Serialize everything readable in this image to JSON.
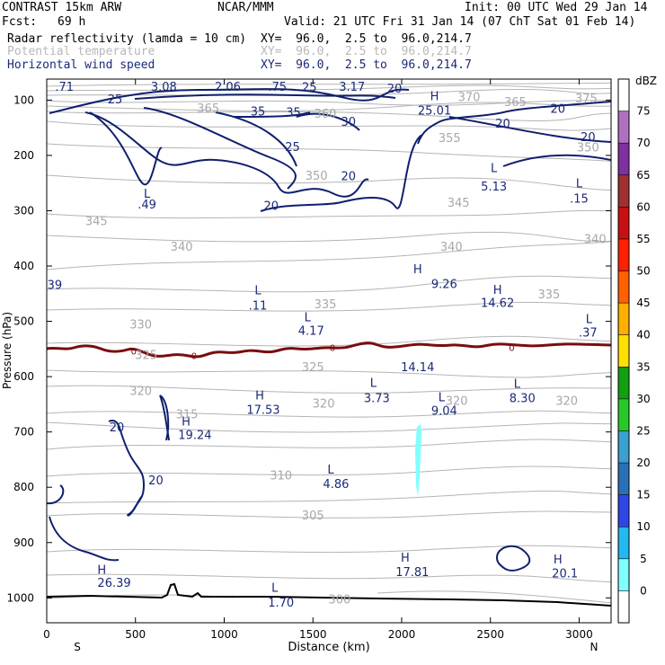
{
  "header": {
    "model": "CONTRAST 15km ARW",
    "org": "NCAR/MMM",
    "init": "Init: 00 UTC Wed 29 Jan 14",
    "fcst_label": "Fcst:",
    "fcst_value": "69 h",
    "valid": "Valid: 21 UTC Fri 31 Jan 14 (07 ChT Sat 01 Feb 14)",
    "fields": [
      {
        "name": "Radar reflectivity (lamda = 10 cm)",
        "xy": "XY=  96.0,  2.5 to  96.0,214.7",
        "style": "black"
      },
      {
        "name": "Potential temperature",
        "xy": "XY=  96.0,  2.5 to  96.0,214.7",
        "style": "gray"
      },
      {
        "name": "Horizontal wind speed",
        "xy": "XY=  96.0,  2.5 to  96.0,214.7",
        "style": "navy"
      }
    ]
  },
  "chart_data": {
    "type": "contour",
    "xlabel": "Distance (km)",
    "ylabel": "Pressure (hPa)",
    "xlim": [
      0,
      3180
    ],
    "ylim": [
      1045,
      62
    ],
    "x_ticks": [
      0,
      500,
      1000,
      1500,
      2000,
      2500,
      3000
    ],
    "y_ticks": [
      100,
      200,
      300,
      400,
      500,
      600,
      700,
      800,
      900,
      1000
    ],
    "x_ends": {
      "left": "S",
      "right": "N"
    },
    "colorbar": {
      "unit": "dBZ",
      "levels": [
        0,
        5,
        10,
        15,
        20,
        25,
        30,
        35,
        40,
        45,
        50,
        55,
        60,
        65,
        70,
        75
      ],
      "colors": [
        "#ffffff",
        "#80ffff",
        "#22b8f0",
        "#2e46e8",
        "#2a70b8",
        "#3aa0d0",
        "#28c828",
        "#10a010",
        "#ffe000",
        "#ffb000",
        "#ff6000",
        "#ff2000",
        "#c81010",
        "#a03030",
        "#8030a0",
        "#b070c0",
        "#ffffff"
      ]
    },
    "wind_labels": [
      {
        "text": "H",
        "x": 2185,
        "p": 92
      },
      {
        "text": "25.01",
        "x": 2185,
        "p": 118
      },
      {
        "text": "L",
        "x": 2520,
        "p": 222
      },
      {
        "text": "5.13",
        "x": 2520,
        "p": 255
      },
      {
        "text": "L",
        "x": 3000,
        "p": 250
      },
      {
        "text": "L",
        "x": 565,
        "p": 268
      },
      {
        "text": "H",
        "x": 2090,
        "p": 405
      },
      {
        "text": "L",
        "x": 1190,
        "p": 443
      },
      {
        "text": "H",
        "x": 2540,
        "p": 442
      },
      {
        "text": "L",
        "x": 1470,
        "p": 492
      },
      {
        "text": "L",
        "x": 3055,
        "p": 495
      },
      {
        "text": "L",
        "x": 1840,
        "p": 610
      },
      {
        "text": "L",
        "x": 2650,
        "p": 612
      },
      {
        "text": "H",
        "x": 1200,
        "p": 633
      },
      {
        "text": "L",
        "x": 2225,
        "p": 636
      },
      {
        "text": "H",
        "x": 785,
        "p": 680
      },
      {
        "text": "L",
        "x": 1600,
        "p": 767
      },
      {
        "text": "H",
        "x": 310,
        "p": 948
      },
      {
        "text": "H",
        "x": 2020,
        "p": 926
      },
      {
        "text": "H",
        "x": 2880,
        "p": 930
      },
      {
        "text": "L",
        "x": 1285,
        "p": 981
      },
      {
        "text": ".71",
        "x": 100,
        "p": 75
      },
      {
        "text": "3.08",
        "x": 660,
        "p": 75
      },
      {
        "text": "2.06",
        "x": 1020,
        "p": 75
      },
      {
        "text": ".75",
        "x": 1300,
        "p": 75
      },
      {
        "text": "25",
        "x": 1480,
        "p": 76
      },
      {
        "text": "3.17",
        "x": 1720,
        "p": 75
      },
      {
        "text": "20",
        "x": 1960,
        "p": 78
      },
      {
        "text": "25",
        "x": 385,
        "p": 98
      },
      {
        "text": "35",
        "x": 1190,
        "p": 120
      },
      {
        "text": "35",
        "x": 1390,
        "p": 121
      },
      {
        "text": "30",
        "x": 1700,
        "p": 138
      },
      {
        "text": "20",
        "x": 2880,
        "p": 115
      },
      {
        "text": "20",
        "x": 2570,
        "p": 142
      },
      {
        "text": "20",
        "x": 3050,
        "p": 166
      },
      {
        "text": "25",
        "x": 1385,
        "p": 184
      },
      {
        "text": "20",
        "x": 1700,
        "p": 237
      },
      {
        "text": "20",
        "x": 1265,
        "p": 290
      },
      {
        "text": ".15",
        "x": 3000,
        "p": 277
      },
      {
        "text": ".49",
        "x": 565,
        "p": 288
      },
      {
        "text": "39",
        "x": 45,
        "p": 433
      },
      {
        "text": "9.26",
        "x": 2240,
        "p": 432
      },
      {
        "text": ".11",
        "x": 1190,
        "p": 471
      },
      {
        "text": "14.62",
        "x": 2540,
        "p": 466
      },
      {
        "text": "4.17",
        "x": 1490,
        "p": 516
      },
      {
        "text": ".37",
        "x": 3050,
        "p": 519
      },
      {
        "text": "14.14",
        "x": 2090,
        "p": 582
      },
      {
        "text": "3.73",
        "x": 1860,
        "p": 638
      },
      {
        "text": "8.30",
        "x": 2680,
        "p": 638
      },
      {
        "text": "17.53",
        "x": 1220,
        "p": 659
      },
      {
        "text": "9.04",
        "x": 2240,
        "p": 661
      },
      {
        "text": "19.24",
        "x": 835,
        "p": 705
      },
      {
        "text": "20",
        "x": 395,
        "p": 691
      },
      {
        "text": "20",
        "x": 615,
        "p": 787
      },
      {
        "text": "4.86",
        "x": 1630,
        "p": 793
      },
      {
        "text": "26.39",
        "x": 380,
        "p": 972
      },
      {
        "text": "17.81",
        "x": 2060,
        "p": 952
      },
      {
        "text": "20.1",
        "x": 2920,
        "p": 955
      },
      {
        "text": "1.70",
        "x": 1320,
        "p": 1008
      }
    ],
    "theta_labels": [
      {
        "text": "370",
        "x": 2380,
        "p": 94
      },
      {
        "text": "375",
        "x": 3040,
        "p": 96
      },
      {
        "text": "365",
        "x": 2640,
        "p": 103
      },
      {
        "text": "360",
        "x": 1570,
        "p": 124
      },
      {
        "text": "365",
        "x": 910,
        "p": 114
      },
      {
        "text": "355",
        "x": 2270,
        "p": 168
      },
      {
        "text": "350",
        "x": 3050,
        "p": 185
      },
      {
        "text": "350",
        "x": 1520,
        "p": 236
      },
      {
        "text": "345",
        "x": 2320,
        "p": 285
      },
      {
        "text": "345",
        "x": 280,
        "p": 318
      },
      {
        "text": "340",
        "x": 760,
        "p": 364
      },
      {
        "text": "340",
        "x": 2280,
        "p": 364
      },
      {
        "text": "340",
        "x": 3090,
        "p": 350
      },
      {
        "text": "335",
        "x": 1570,
        "p": 468
      },
      {
        "text": "335",
        "x": 2830,
        "p": 450
      },
      {
        "text": "330",
        "x": 530,
        "p": 505
      },
      {
        "text": "325",
        "x": 560,
        "p": 560
      },
      {
        "text": "325",
        "x": 1500,
        "p": 582
      },
      {
        "text": "320",
        "x": 530,
        "p": 625
      },
      {
        "text": "320",
        "x": 1560,
        "p": 648
      },
      {
        "text": "320",
        "x": 2310,
        "p": 643
      },
      {
        "text": "320",
        "x": 2930,
        "p": 643
      },
      {
        "text": "315",
        "x": 790,
        "p": 667
      },
      {
        "text": "310",
        "x": 1320,
        "p": 778
      },
      {
        "text": "305",
        "x": 1500,
        "p": 850
      },
      {
        "text": "300",
        "x": 1650,
        "p": 1002
      }
    ],
    "zero_labels": [
      {
        "text": "0",
        "x": 490,
        "p": 552
      },
      {
        "text": "0",
        "x": 830,
        "p": 560
      },
      {
        "text": "0",
        "x": 1610,
        "p": 545
      },
      {
        "text": "0",
        "x": 2620,
        "p": 545
      }
    ]
  }
}
